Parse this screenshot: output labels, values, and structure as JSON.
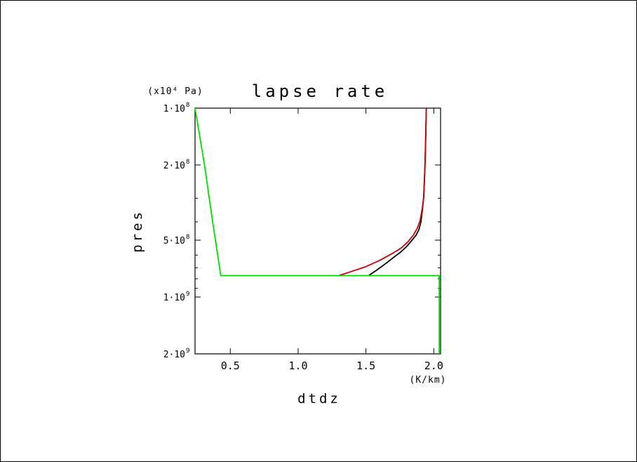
{
  "chart_data": {
    "type": "line",
    "title": "lapse rate",
    "xlabel": "dtdz",
    "x_unit": "(K/km)",
    "ylabel": "pres",
    "y_unit": "(x10⁴ Pa)",
    "xlim": [
      0.24,
      2.05
    ],
    "ylim": [
      100000000,
      2000000000
    ],
    "y_scale": "log",
    "y_reversed": true,
    "grid": false,
    "legend": "none",
    "x_ticks": [
      {
        "value": 0.5,
        "label": "0.5"
      },
      {
        "value": 1.0,
        "label": "1.0"
      },
      {
        "value": 1.5,
        "label": "1.5"
      },
      {
        "value": 2.0,
        "label": "2.0"
      }
    ],
    "y_ticks": [
      {
        "value": 100000000,
        "label": "1·10",
        "exp": "8"
      },
      {
        "value": 200000000,
        "label": "2·10",
        "exp": "8"
      },
      {
        "value": 500000000,
        "label": "5·10",
        "exp": "8"
      },
      {
        "value": 1000000000,
        "label": "1·10",
        "exp": "9"
      },
      {
        "value": 2000000000,
        "label": "2·10",
        "exp": "9"
      }
    ],
    "series": [
      {
        "color": "#000000",
        "points": [
          [
            1.52,
            770000000
          ],
          [
            1.58,
            720000000
          ],
          [
            1.64,
            670000000
          ],
          [
            1.7,
            620000000
          ],
          [
            1.76,
            575000000
          ],
          [
            1.8,
            540000000
          ],
          [
            1.84,
            500000000
          ],
          [
            1.87,
            470000000
          ],
          [
            1.89,
            440000000
          ],
          [
            1.905,
            400000000
          ],
          [
            1.915,
            350000000
          ],
          [
            1.925,
            300000000
          ],
          [
            1.93,
            250000000
          ],
          [
            1.935,
            200000000
          ],
          [
            1.94,
            150000000
          ],
          [
            1.945,
            100000000
          ]
        ]
      },
      {
        "color": "#cc0000",
        "points": [
          [
            1.3,
            770000000
          ],
          [
            1.4,
            730000000
          ],
          [
            1.5,
            690000000
          ],
          [
            1.6,
            640000000
          ],
          [
            1.7,
            585000000
          ],
          [
            1.76,
            550000000
          ],
          [
            1.81,
            510000000
          ],
          [
            1.85,
            470000000
          ],
          [
            1.88,
            430000000
          ],
          [
            1.9,
            390000000
          ],
          [
            1.915,
            340000000
          ],
          [
            1.925,
            300000000
          ],
          [
            1.93,
            250000000
          ],
          [
            1.935,
            200000000
          ],
          [
            1.94,
            150000000
          ],
          [
            1.945,
            100000000
          ]
        ]
      },
      {
        "color": "#00dd00",
        "points": [
          [
            0.24,
            100000000
          ],
          [
            0.31,
            200000000
          ],
          [
            0.37,
            400000000
          ],
          [
            0.43,
            770000000
          ],
          [
            2.04,
            770000000
          ],
          [
            2.04,
            2000000000
          ]
        ]
      }
    ]
  }
}
